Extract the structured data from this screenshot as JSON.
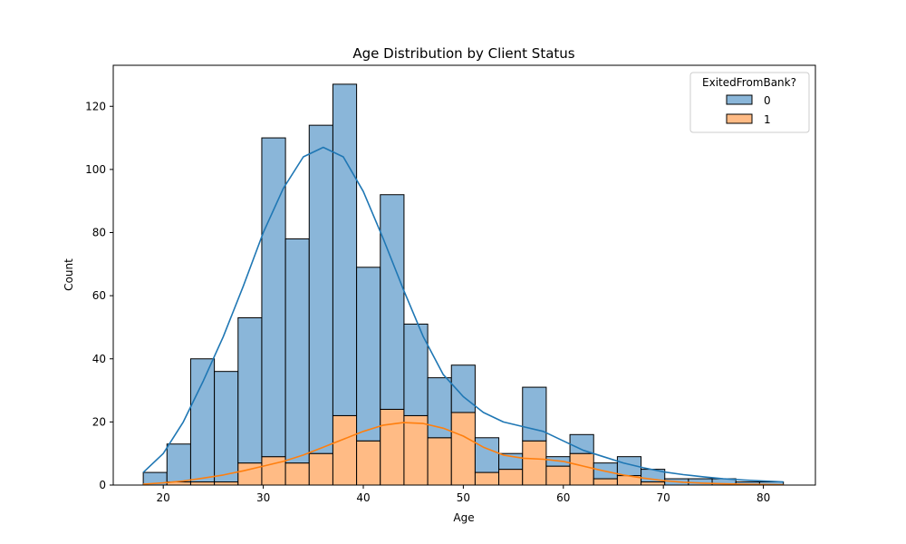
{
  "chart_data": {
    "type": "bar",
    "stacked": true,
    "title": "Age Distribution by Client Status",
    "xlabel": "Age",
    "ylabel": "Count",
    "xlim": [
      15.0,
      85.2
    ],
    "ylim": [
      0,
      133
    ],
    "xticks": [
      20,
      30,
      40,
      50,
      60,
      70,
      80
    ],
    "yticks": [
      0,
      20,
      40,
      60,
      80,
      100,
      120
    ],
    "bin_edges": [
      18.0,
      20.37,
      22.74,
      25.11,
      27.48,
      29.85,
      32.22,
      34.59,
      36.96,
      39.33,
      41.7,
      44.07,
      46.44,
      48.81,
      51.18,
      53.55,
      55.92,
      58.29,
      60.66,
      63.03,
      65.4,
      67.77,
      70.14,
      72.51,
      74.88,
      77.25,
      79.62,
      82.0
    ],
    "series": [
      {
        "name": "0",
        "color": "#1f77b4",
        "bar_color": "#8ab6d9",
        "values": [
          4,
          12,
          39,
          35,
          46,
          101,
          71,
          104,
          105,
          55,
          68,
          29,
          19,
          15,
          11,
          5,
          17,
          3,
          6,
          5,
          6,
          4,
          2,
          2,
          2,
          1,
          1
        ]
      },
      {
        "name": "1",
        "color": "#ff7f0e",
        "bar_color": "#ffbb85",
        "values": [
          0,
          1,
          1,
          1,
          7,
          9,
          7,
          10,
          22,
          14,
          24,
          22,
          15,
          23,
          4,
          5,
          14,
          6,
          10,
          2,
          3,
          1,
          0,
          0,
          0,
          0,
          0
        ]
      }
    ],
    "kde": [
      {
        "series": "0",
        "x": [
          18,
          20,
          22,
          24,
          26,
          28,
          30,
          32,
          34,
          36,
          38,
          40,
          42,
          44,
          46,
          48,
          50,
          52,
          54,
          56,
          58,
          60,
          62,
          64,
          66,
          68,
          70,
          72,
          74,
          76,
          78,
          80,
          82
        ],
        "y": [
          4,
          10,
          20,
          33,
          47,
          63,
          80,
          94,
          104,
          107,
          104,
          93,
          78,
          62,
          47,
          35,
          28,
          23,
          20,
          18.5,
          17,
          14,
          11,
          9,
          7,
          5.5,
          4.2,
          3.3,
          2.6,
          2,
          1.6,
          1.3,
          1
        ]
      },
      {
        "series": "1",
        "x": [
          18,
          20,
          22,
          24,
          26,
          28,
          30,
          32,
          34,
          36,
          38,
          40,
          42,
          44,
          46,
          48,
          50,
          52,
          54,
          56,
          58,
          60,
          62,
          64,
          66,
          68,
          70,
          72,
          74,
          76,
          78,
          80,
          82
        ],
        "y": [
          0.3,
          0.7,
          1.3,
          2.2,
          3.2,
          4.5,
          6,
          7.5,
          9.5,
          12,
          14.5,
          17,
          19,
          19.8,
          19.5,
          18,
          15.5,
          12,
          9.5,
          8.5,
          8.2,
          7.5,
          6,
          4.5,
          3.2,
          2.2,
          1.4,
          0.9,
          0.6,
          0.4,
          0.3,
          0.2,
          0.1
        ]
      }
    ],
    "legend": {
      "title": "ExitedFromBank?",
      "placement": "top-right",
      "entries": [
        "0",
        "1"
      ]
    },
    "grid": false
  }
}
